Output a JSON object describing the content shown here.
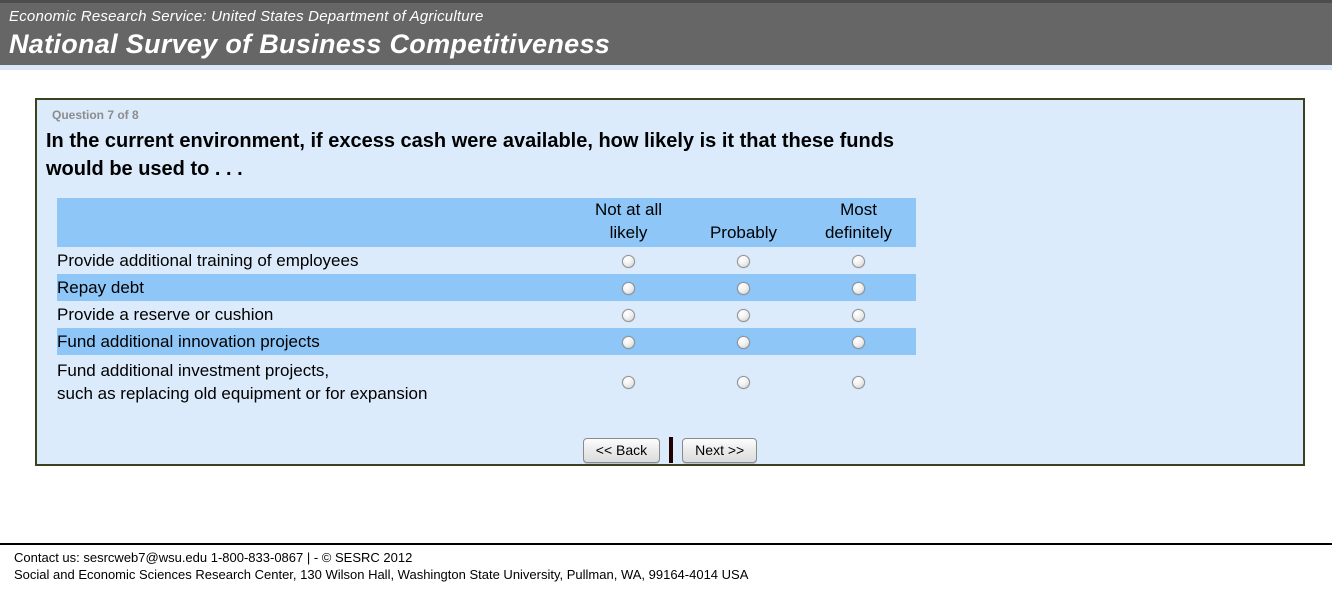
{
  "header": {
    "agency": "Economic Research Service: United States Department of Agriculture",
    "survey_title": "National Survey of Business Competitiveness"
  },
  "question": {
    "progress": "Question 7 of 8",
    "text": "In the current environment, if excess cash were available, how likely is it that these funds\nwould be used to . . ."
  },
  "table": {
    "columns": [
      "Not at all\nlikely",
      "Probably",
      "Most\ndefinitely"
    ],
    "rows": [
      {
        "label": "Provide additional training of employees",
        "highlighted": false
      },
      {
        "label": "Repay debt",
        "highlighted": true
      },
      {
        "label": "Provide a reserve or cushion",
        "highlighted": false
      },
      {
        "label": "Fund additional innovation projects",
        "highlighted": true
      },
      {
        "label": "Fund additional investment projects,\nsuch as replacing old equipment or for expansion",
        "highlighted": false
      }
    ],
    "radio_state": "all unselected"
  },
  "buttons": {
    "back": "<< Back",
    "next": "Next >>"
  },
  "footer": {
    "contact_line": "Contact us: sesrcweb7@wsu.edu 1-800-833-0867 | - © SESRC 2012",
    "address_line": "Social and Economic Sciences Research Center, 130 Wilson Hall, Washington State University, Pullman, WA, 99164-4014 USA"
  },
  "colors": {
    "header_bg": "#666666",
    "header_fg": "#ffffff",
    "panel_bg": "#dcebfc",
    "panel_border": "#3a431f",
    "table_head_bg": "#8dc6f7",
    "row_highlight_bg": "#8dc6f7"
  }
}
